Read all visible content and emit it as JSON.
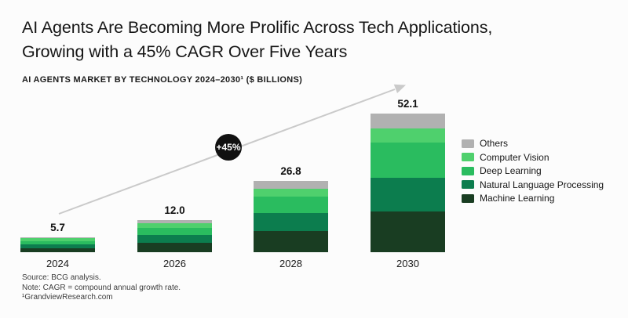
{
  "page": {
    "title_line1": "AI Agents Are Becoming More Prolific Across Tech Applications,",
    "title_line2": "Growing with a 45% CAGR Over Five Years",
    "subtitle": "AI AGENTS MARKET BY TECHNOLOGY 2024–2030¹ ($ BILLIONS)"
  },
  "badge": {
    "label": "+45%",
    "bg_color": "#111111",
    "text_color": "#ffffff"
  },
  "arrow": {
    "color": "#cacaca"
  },
  "chart_data": {
    "type": "bar",
    "stacked": true,
    "title": "AI Agents Market by Technology 2024–2030 ($ billions)",
    "categories": [
      "2024",
      "2026",
      "2028",
      "2030"
    ],
    "totals": [
      5.7,
      12.0,
      26.8,
      52.1
    ],
    "total_labels": [
      "5.7",
      "12.0",
      "26.8",
      "52.1"
    ],
    "series": [
      {
        "name": "Machine Learning",
        "color": "#193d22",
        "values": [
          1.6,
          3.6,
          7.9,
          15.3
        ]
      },
      {
        "name": "Natural Language Processing",
        "color": "#0c7d4e",
        "values": [
          1.2,
          3.0,
          6.7,
          12.7
        ]
      },
      {
        "name": "Deep Learning",
        "color": "#2abc5f",
        "values": [
          1.3,
          2.5,
          6.4,
          13.2
        ]
      },
      {
        "name": "Computer Vision",
        "color": "#4fd06d",
        "values": [
          1.1,
          1.7,
          2.9,
          5.4
        ]
      },
      {
        "name": "Others",
        "color": "#b1b1b1",
        "values": [
          0.5,
          1.2,
          2.9,
          5.5
        ]
      }
    ],
    "legend": [
      "Others",
      "Computer Vision",
      "Deep Learning",
      "Natural Language Processing",
      "Machine Learning"
    ],
    "legend_position": "right",
    "annotation": "+45%",
    "xlabel": "",
    "ylabel": "",
    "axes_hidden": true
  },
  "footer": {
    "line1": "Source: BCG analysis.",
    "line2": "Note: CAGR = compound annual growth rate.",
    "line3": "¹GrandviewResearch.com"
  }
}
